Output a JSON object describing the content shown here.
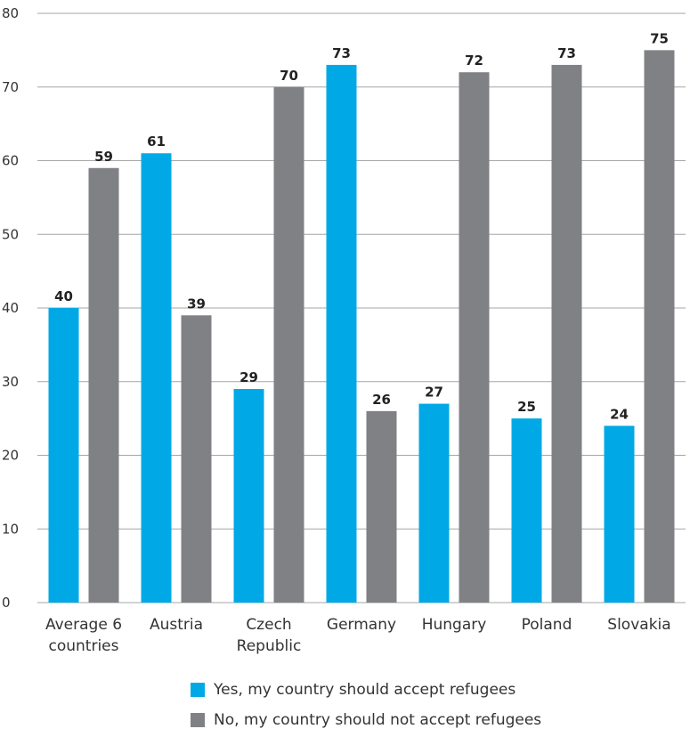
{
  "colors": {
    "yes": "#00a9e6",
    "no": "#808184",
    "grid": "#a6a6a6"
  },
  "chart_data": {
    "type": "bar",
    "title": "",
    "xlabel": "",
    "ylabel": "",
    "ylim": [
      0,
      80
    ],
    "yticks": [
      0,
      10,
      20,
      30,
      40,
      50,
      60,
      70,
      80
    ],
    "grid": true,
    "legend_position": "bottom",
    "categories": [
      [
        "Average 6",
        "countries"
      ],
      [
        "Austria"
      ],
      [
        "Czech",
        "Republic"
      ],
      [
        "Germany"
      ],
      [
        "Hungary"
      ],
      [
        "Poland"
      ],
      [
        "Slovakia"
      ]
    ],
    "series": [
      {
        "name": "Yes, my country should accept refugees",
        "values": [
          40,
          61,
          29,
          73,
          27,
          25,
          24
        ]
      },
      {
        "name": "No, my country should not accept refugees",
        "values": [
          59,
          39,
          70,
          26,
          72,
          73,
          75
        ]
      }
    ]
  }
}
